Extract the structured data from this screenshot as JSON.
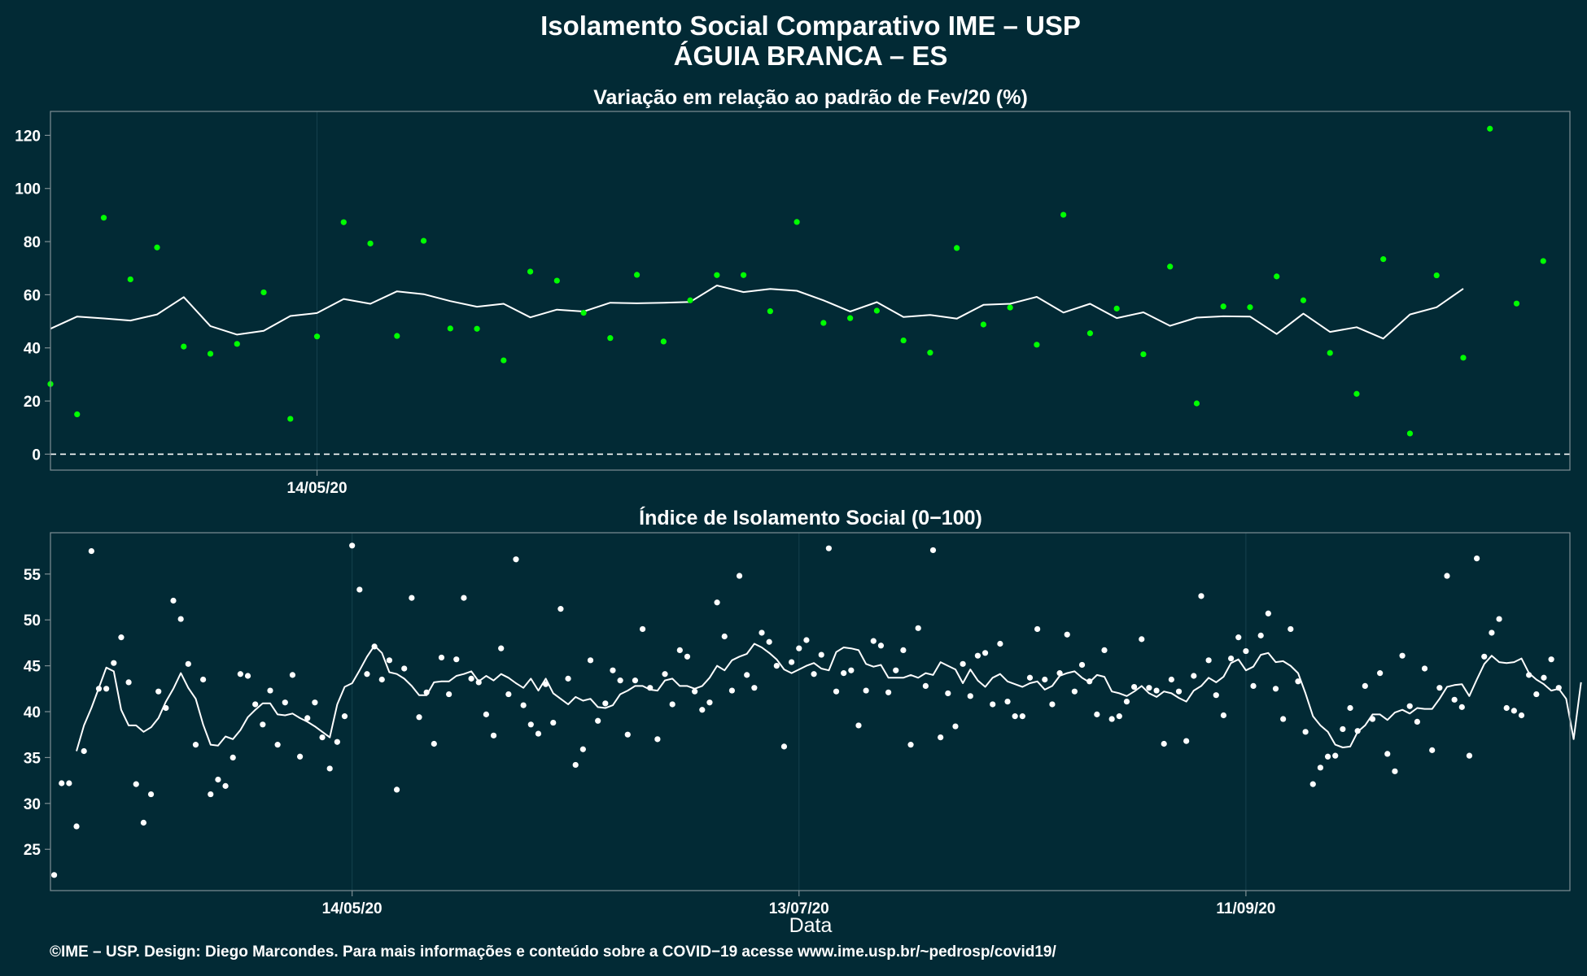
{
  "header": {
    "title_line1": "Isolamento Social Comparativo IME – USP",
    "title_line2": "ÁGUIA BRANCA – ES"
  },
  "footer": {
    "credit": "©IME – USP. Design: Diego Marcondes. Para mais informações e conteúdo sobre a COVID−19 acesse www.ime.usp.br/~pedrosp/covid19/"
  },
  "colors": {
    "background": "#022a35",
    "top_points": "#00ff00",
    "bottom_points": "#ffffff",
    "lines": "#ffffff"
  },
  "chart_data": [
    {
      "type": "scatter",
      "title": "Variação em relação ao padrão de Fev/20 (%)",
      "xlabel": "",
      "ylabel": "",
      "x_ticks": [
        {
          "label": "14/05/20",
          "x": 10
        }
      ],
      "xlim": [
        0,
        57
      ],
      "ylim": [
        -6,
        129
      ],
      "y_ticks": [
        0,
        20,
        40,
        60,
        80,
        100,
        120
      ],
      "reference_line": {
        "y": 0,
        "style": "dashed"
      },
      "grid": true,
      "series": [
        {
          "kind": "points",
          "values": [
            26.4,
            15,
            89,
            65.8,
            77.8,
            40.5,
            37.8,
            41.5,
            60.9,
            13.3,
            44.3,
            87.3,
            79.3,
            44.5,
            80.3,
            47.3,
            47.2,
            35.3,
            68.7,
            65.3,
            53.2,
            43.7,
            67.5,
            42.4,
            57.9,
            67.4,
            67.4,
            53.8,
            87.4,
            49.4,
            51.2,
            54,
            42.8,
            38.2,
            77.6,
            48.8,
            55.2,
            41.2,
            90.1,
            45.5,
            54.8,
            37.6,
            70.6,
            19.1,
            55.6,
            55.3,
            66.9,
            57.9,
            38.1,
            22.7,
            73.4,
            7.8,
            67.3,
            36.3,
            122.5,
            56.7,
            72.7
          ]
        },
        {
          "kind": "line",
          "values": [
            47.2,
            51.8,
            51.1,
            50.3,
            52.6,
            59.1,
            48.2,
            45,
            46.4,
            52,
            53.1,
            58.4,
            56.6,
            61.3,
            60.2,
            57.6,
            55.5,
            56.6,
            51.5,
            54.4,
            53.7,
            57,
            56.8,
            57,
            57.3,
            63.5,
            61,
            62.2,
            61.5,
            57.9,
            53.7,
            57.2,
            51.6,
            52.4,
            51,
            56.2,
            56.6,
            59.2,
            53.3,
            56.6,
            51.2,
            53.4,
            48.3,
            51.4,
            51.9,
            51.8,
            45.2,
            52.9,
            46,
            47.8,
            43.5,
            52.6,
            55.3,
            62.3
          ]
        }
      ]
    },
    {
      "type": "scatter",
      "title": "Índice de Isolamento Social (0−100)",
      "xlabel": "Data",
      "ylabel": "",
      "x_ticks": [
        {
          "label": "14/05/20",
          "x": 40
        },
        {
          "label": "13/07/20",
          "x": 100
        },
        {
          "label": "11/09/20",
          "x": 160
        }
      ],
      "xlim": [
        -0.5,
        203.5
      ],
      "ylim": [
        20.5,
        59.5
      ],
      "y_ticks": [
        25,
        30,
        35,
        40,
        45,
        50,
        55
      ],
      "grid": true,
      "series": [
        {
          "kind": "points",
          "values": [
            22.2,
            32.2,
            32.2,
            27.5,
            35.7,
            57.5,
            42.5,
            42.5,
            45.3,
            48.1,
            43.2,
            32.1,
            27.9,
            31,
            42.2,
            40.4,
            52.1,
            50.1,
            45.2,
            36.4,
            43.5,
            31,
            32.6,
            31.9,
            35,
            44.1,
            43.9,
            40.8,
            38.6,
            42.3,
            36.4,
            41,
            44,
            35.1,
            39.3,
            41,
            37.2,
            33.8,
            36.7,
            39.5,
            58.1,
            53.3,
            44.1,
            47.1,
            43.5,
            45.6,
            31.5,
            44.7,
            52.4,
            39.4,
            42.1,
            36.5,
            45.9,
            41.9,
            45.7,
            52.4,
            43.6,
            43.2,
            39.7,
            37.4,
            46.9,
            41.9,
            56.6,
            40.7,
            38.6,
            37.6,
            43,
            38.8,
            51.2,
            43.6,
            34.2,
            35.9,
            45.6,
            39,
            40.9,
            44.5,
            43.4,
            37.5,
            43.4,
            49,
            42.6,
            37,
            44.1,
            40.8,
            46.7,
            46,
            42.2,
            40.2,
            41,
            51.9,
            48.2,
            42.3,
            54.8,
            44,
            42.6,
            48.6,
            47.6,
            45,
            36.2,
            45.4,
            46.9,
            47.8,
            44.1,
            46.2,
            57.8,
            42.2,
            44.2,
            44.5,
            38.5,
            42.3,
            47.7,
            47.2,
            42.1,
            44.5,
            46.7,
            36.4,
            49.1,
            42.8,
            57.6,
            37.2,
            42,
            38.4,
            45.2,
            41.7,
            46.1,
            46.4,
            40.8,
            47.4,
            41.1,
            39.5,
            39.5,
            43.7,
            49,
            43.5,
            40.8,
            44.2,
            48.4,
            42.2,
            45.1,
            43.3,
            39.7,
            46.7,
            39.2,
            39.5,
            41.1,
            42.7,
            47.9,
            42.6,
            42.3,
            36.5,
            43.5,
            42.2,
            36.8,
            43.9,
            52.6,
            45.6,
            41.8,
            39.6,
            45.8,
            48.1,
            46.6,
            42.8,
            48.3,
            50.7,
            42.5,
            39.2,
            49,
            43.3,
            37.8,
            32.1,
            33.9,
            35.1,
            35.2,
            38.1,
            40.4,
            37.9,
            42.8,
            39.2,
            44.2,
            35.4,
            33.5,
            46.1,
            40.6,
            38.9,
            44.7,
            35.8,
            42.6,
            54.8,
            41.3,
            40.5,
            35.2,
            56.7,
            46,
            48.6,
            50.1,
            40.4,
            40.1,
            39.6,
            44,
            41.9,
            43.7,
            45.7,
            42.6
          ]
        },
        {
          "kind": "line",
          "x_start": 3,
          "values": [
            35.7,
            38.5,
            40.4,
            42.6,
            44.8,
            44.4,
            40.2,
            38.5,
            38.5,
            37.8,
            38.3,
            39.3,
            41.1,
            42.5,
            44.2,
            42.6,
            41.4,
            38.6,
            36.4,
            36.3,
            37.3,
            37,
            38,
            39.4,
            40.2,
            40.9,
            40.9,
            39.7,
            39.6,
            39.8,
            39.3,
            38.9,
            38.4,
            37.8,
            37.2,
            40.8,
            42.7,
            43.1,
            44.5,
            46,
            47.2,
            46.4,
            44.3,
            44.1,
            43.6,
            42.8,
            41.8,
            41.8,
            43.2,
            43.3,
            43.3,
            43.9,
            44.1,
            44.4,
            43.3,
            43.9,
            43.4,
            44.1,
            43.7,
            43.1,
            42.6,
            43.6,
            42.3,
            43.6,
            42,
            41.4,
            40.8,
            41.6,
            41.2,
            41.4,
            40.5,
            40.4,
            40.7,
            41.9,
            42.3,
            42.8,
            42.8,
            42.4,
            42.3,
            43.4,
            43.6,
            42.8,
            42.8,
            42.5,
            42.8,
            43.7,
            45,
            44.5,
            45.6,
            46,
            46.3,
            47.4,
            47,
            46.4,
            45.7,
            44.6,
            44.2,
            44.6,
            45,
            45.3,
            44.7,
            44.5,
            46.5,
            47,
            46.9,
            46.7,
            45.2,
            44.9,
            45.1,
            43.7,
            43.7,
            43.7,
            44,
            43.7,
            44.2,
            44,
            45.4,
            45,
            44.6,
            43.1,
            44.6,
            43.4,
            42.7,
            43.7,
            44.1,
            43.3,
            43,
            42.7,
            43.1,
            43.3,
            42.4,
            42.8,
            43.9,
            44.2,
            44.4,
            43.7,
            43.2,
            44,
            43.8,
            42.2,
            42,
            41.7,
            42.2,
            42.8,
            42,
            41.6,
            42.2,
            42,
            41.5,
            41.1,
            42.3,
            42.8,
            43.7,
            43.2,
            43.8,
            45.3,
            45.7,
            44.5,
            44.9,
            46.2,
            46.4,
            45.4,
            45.5,
            45,
            44.2,
            42,
            39.5,
            38.5,
            37.8,
            36.4,
            36.1,
            36.2,
            37.8,
            38.5,
            39.7,
            39.7,
            39.1,
            39.9,
            40.2,
            39.8,
            40.4,
            40.3,
            40.3,
            41.4,
            42.7,
            42.9,
            43,
            41.7,
            43.5,
            45.2,
            46.1,
            45.4,
            45.3,
            45.4,
            45.8,
            44.2,
            43.5,
            43,
            42.3,
            42.5,
            41.4,
            37,
            43.2
          ]
        }
      ]
    }
  ]
}
